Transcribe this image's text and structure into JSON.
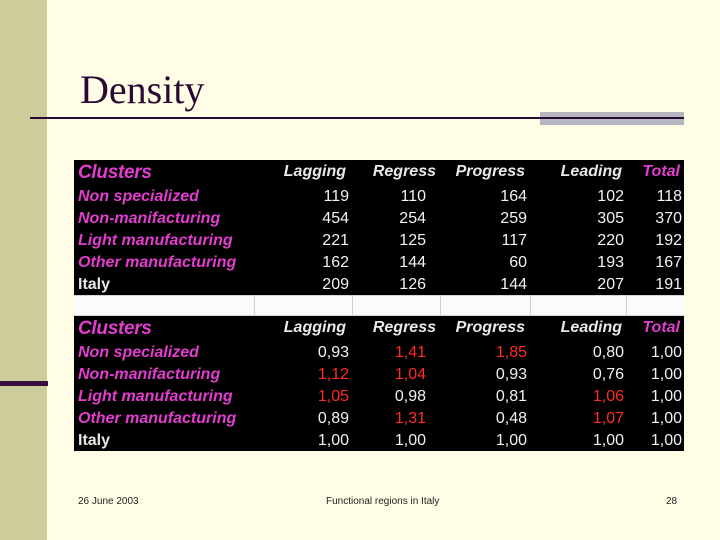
{
  "slide": {
    "title": "Density",
    "footer_left": "26 June 2003",
    "footer_center": "Functional regions in Italy",
    "footer_right": "28"
  },
  "colors": {
    "background": "#fffde5",
    "left_bar": "#cdcc9b",
    "title": "#2a0a33",
    "magenta": "#e33dcf",
    "red_highlight": "#ff2a2a"
  },
  "table1": {
    "headers": [
      "Clusters",
      "Lagging",
      "Regress",
      "Progress",
      "Leading",
      "Total"
    ],
    "rows": [
      {
        "label": "Non specialized",
        "values": [
          "119",
          "110",
          "164",
          "102",
          "118"
        ]
      },
      {
        "label": "Non-manifacturing",
        "values": [
          "454",
          "254",
          "259",
          "305",
          "370"
        ]
      },
      {
        "label": "Light manufacturing",
        "values": [
          "221",
          "125",
          "117",
          "220",
          "192"
        ]
      },
      {
        "label": "Other manufacturing",
        "values": [
          "162",
          "144",
          "60",
          "193",
          "167"
        ]
      },
      {
        "label": "Italy",
        "values": [
          "209",
          "126",
          "144",
          "207",
          "191"
        ]
      }
    ]
  },
  "table2": {
    "headers": [
      "Clusters",
      "Lagging",
      "Regress",
      "Progress",
      "Leading",
      "Total"
    ],
    "rows": [
      {
        "label": "Non specialized",
        "values": [
          "0,93",
          "1,41",
          "1,85",
          "0,80",
          "1,00"
        ],
        "red": [
          false,
          true,
          true,
          false,
          false
        ]
      },
      {
        "label": "Non-manifacturing",
        "values": [
          "1,12",
          "1,04",
          "0,93",
          "0,76",
          "1,00"
        ],
        "red": [
          true,
          true,
          false,
          false,
          false
        ]
      },
      {
        "label": "Light manufacturing",
        "values": [
          "1,05",
          "0,98",
          "0,81",
          "1,06",
          "1,00"
        ],
        "red": [
          true,
          false,
          false,
          true,
          false
        ]
      },
      {
        "label": "Other manufacturing",
        "values": [
          "0,89",
          "1,31",
          "0,48",
          "1,07",
          "1,00"
        ],
        "red": [
          false,
          true,
          false,
          true,
          false
        ]
      },
      {
        "label": "Italy",
        "values": [
          "1,00",
          "1,00",
          "1,00",
          "1,00",
          "1,00"
        ],
        "red": [
          false,
          false,
          false,
          false,
          false
        ]
      }
    ]
  }
}
